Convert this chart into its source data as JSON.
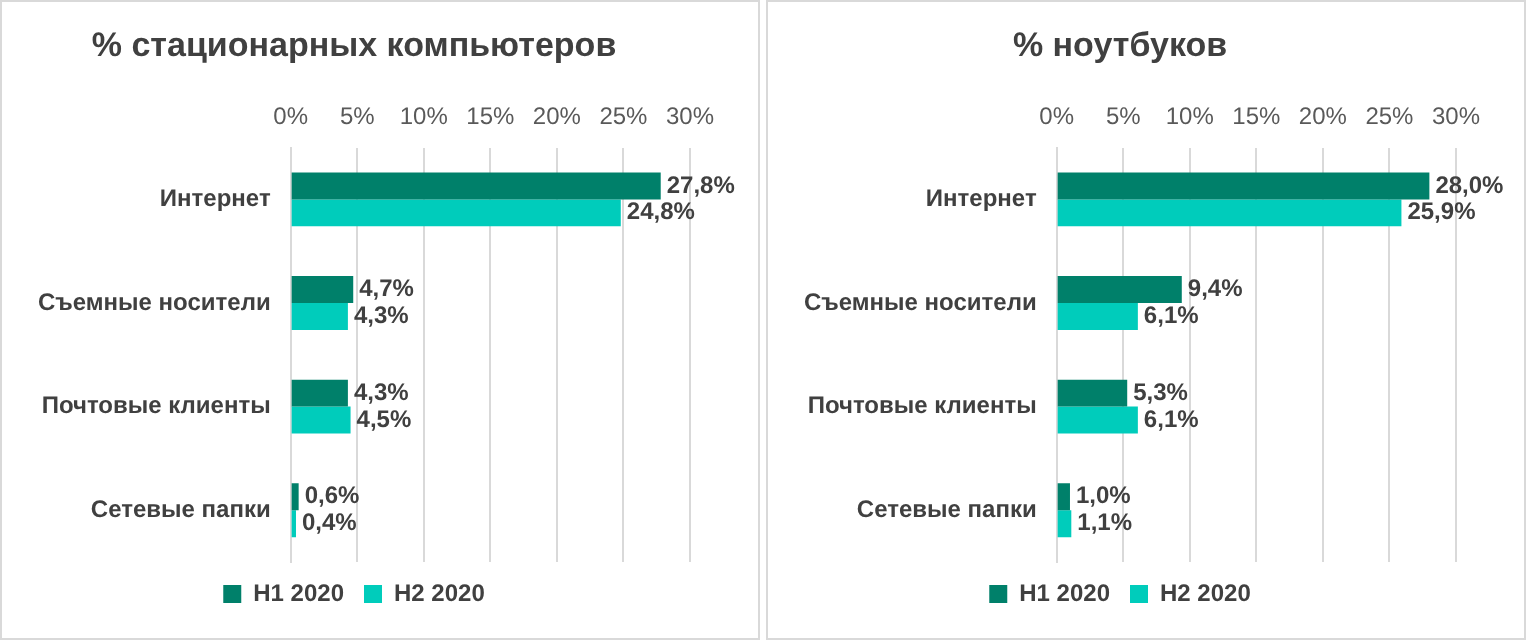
{
  "chart_data": [
    {
      "type": "bar",
      "orientation": "horizontal",
      "title": "% стационарных компьютеров",
      "categories": [
        "Интернет",
        "Съемные носители",
        "Почтовые клиенты",
        "Сетевые папки"
      ],
      "series": [
        {
          "name": "H1 2020",
          "color": "#00806a",
          "values": [
            27.8,
            4.7,
            4.3,
            0.6
          ],
          "value_labels": [
            "27,8%",
            "4,7%",
            "4,3%",
            "0,6%"
          ]
        },
        {
          "name": "H2 2020",
          "color": "#00ccbb",
          "values": [
            24.8,
            4.3,
            4.5,
            0.4
          ],
          "value_labels": [
            "24,8%",
            "4,3%",
            "4,5%",
            "0,4%"
          ]
        }
      ],
      "xlim": [
        0,
        30
      ],
      "xticks": [
        {
          "value": 0,
          "label": "0%"
        },
        {
          "value": 5,
          "label": "5%"
        },
        {
          "value": 10,
          "label": "10%"
        },
        {
          "value": 15,
          "label": "15%"
        },
        {
          "value": 20,
          "label": "20%"
        },
        {
          "value": 25,
          "label": "25%"
        },
        {
          "value": 30,
          "label": "30%"
        }
      ],
      "grid": "x",
      "legend": "bottom"
    },
    {
      "type": "bar",
      "orientation": "horizontal",
      "title": "% ноутбуков",
      "categories": [
        "Интернет",
        "Съемные носители",
        "Почтовые клиенты",
        "Сетевые папки"
      ],
      "series": [
        {
          "name": "H1 2020",
          "color": "#00806a",
          "values": [
            28.0,
            9.4,
            5.3,
            1.0
          ],
          "value_labels": [
            "28,0%",
            "9,4%",
            "5,3%",
            "1,0%"
          ]
        },
        {
          "name": "H2 2020",
          "color": "#00ccbb",
          "values": [
            25.9,
            6.1,
            6.1,
            1.1
          ],
          "value_labels": [
            "25,9%",
            "6,1%",
            "6,1%",
            "1,1%"
          ]
        }
      ],
      "xlim": [
        0,
        30
      ],
      "xticks": [
        {
          "value": 0,
          "label": "0%"
        },
        {
          "value": 5,
          "label": "5%"
        },
        {
          "value": 10,
          "label": "10%"
        },
        {
          "value": 15,
          "label": "15%"
        },
        {
          "value": 20,
          "label": "20%"
        },
        {
          "value": 25,
          "label": "25%"
        },
        {
          "value": 30,
          "label": "30%"
        }
      ],
      "grid": "x",
      "legend": "bottom"
    }
  ]
}
